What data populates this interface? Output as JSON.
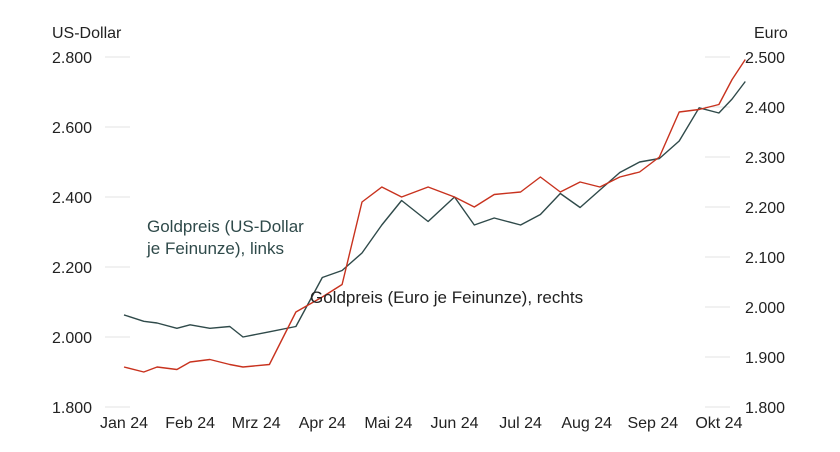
{
  "chart_data": {
    "type": "line",
    "left_axis_title": "US-Dollar",
    "right_axis_title": "Euro",
    "x_tick_labels": [
      "Jan 24",
      "Feb 24",
      "Mrz 24",
      "Apr 24",
      "Mai 24",
      "Jun 24",
      "Jul 24",
      "Aug 24",
      "Sep 24",
      "Okt 24"
    ],
    "left_axis": {
      "min": 1800,
      "max": 2800,
      "tick_values": [
        1800,
        2000,
        2200,
        2400,
        2600,
        2800
      ],
      "tick_labels": [
        "1.800",
        "2.000",
        "2.200",
        "2.400",
        "2.600",
        "2.800"
      ]
    },
    "right_axis": {
      "min": 1800,
      "max": 2500,
      "tick_values": [
        1800,
        1900,
        2000,
        2100,
        2200,
        2300,
        2400,
        2500
      ],
      "tick_labels": [
        "1.800",
        "1.900",
        "2.000",
        "2.100",
        "2.200",
        "2.300",
        "2.400",
        "2.500"
      ]
    },
    "grid": "horizontal",
    "series": [
      {
        "name_lines": [
          "Goldpreis (US-Dollar",
          "je Feinunze), links"
        ],
        "axis": "left",
        "color": "#2f4a4a",
        "x": [
          0,
          0.3,
          0.5,
          0.8,
          1.0,
          1.3,
          1.6,
          1.8,
          2.2,
          2.6,
          3.0,
          3.3,
          3.6,
          3.9,
          4.2,
          4.6,
          5.0,
          5.3,
          5.6,
          6.0,
          6.3,
          6.6,
          6.9,
          7.2,
          7.5,
          7.8,
          8.1,
          8.4,
          8.7,
          9.0,
          9.2,
          9.4
        ],
        "y": [
          2063,
          2045,
          2040,
          2025,
          2035,
          2025,
          2030,
          2000,
          2015,
          2030,
          2170,
          2190,
          2240,
          2320,
          2390,
          2330,
          2400,
          2320,
          2340,
          2320,
          2350,
          2410,
          2370,
          2420,
          2470,
          2500,
          2510,
          2560,
          2655,
          2640,
          2680,
          2730
        ]
      },
      {
        "name": "Goldpreis (Euro je Feinunze), rechts",
        "axis": "right",
        "color": "#c8321e",
        "x": [
          0,
          0.3,
          0.5,
          0.8,
          1.0,
          1.3,
          1.6,
          1.8,
          2.2,
          2.6,
          3.0,
          3.3,
          3.6,
          3.9,
          4.2,
          4.6,
          5.0,
          5.3,
          5.6,
          6.0,
          6.3,
          6.6,
          6.9,
          7.2,
          7.5,
          7.8,
          8.1,
          8.4,
          8.7,
          9.0,
          9.2,
          9.4
        ],
        "y": [
          1880,
          1870,
          1880,
          1875,
          1890,
          1895,
          1885,
          1880,
          1885,
          1990,
          2020,
          2045,
          2210,
          2240,
          2220,
          2240,
          2220,
          2200,
          2225,
          2230,
          2260,
          2230,
          2250,
          2240,
          2260,
          2270,
          2300,
          2390,
          2395,
          2405,
          2455,
          2495
        ]
      }
    ]
  }
}
